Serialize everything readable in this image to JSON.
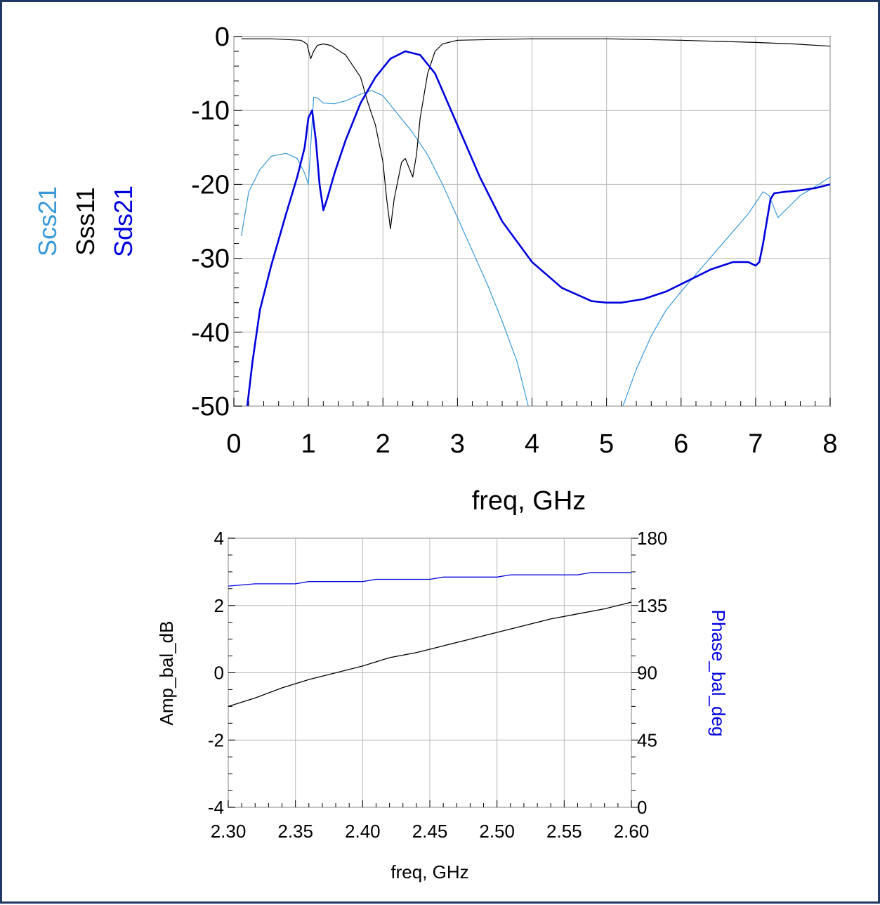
{
  "chart_data": [
    {
      "type": "line",
      "xlabel": "freq, GHz",
      "ylabel": "",
      "xlim": [
        0,
        8
      ],
      "ylim": [
        -50,
        0
      ],
      "xticks": [
        0,
        1,
        2,
        3,
        4,
        5,
        6,
        7,
        8
      ],
      "yticks": [
        0,
        -10,
        -20,
        -30,
        -40,
        -50
      ],
      "grid": true,
      "legend": "left, vertical text",
      "series": [
        {
          "name": "Scs21",
          "color": "#3a9ad9",
          "x": [
            0.1,
            0.2,
            0.35,
            0.5,
            0.7,
            0.85,
            0.95,
            1.0,
            1.03,
            1.07,
            1.12,
            1.2,
            1.35,
            1.5,
            1.7,
            1.85,
            2.0,
            2.2,
            2.4,
            2.6,
            2.8,
            3.0,
            3.2,
            3.4,
            3.6,
            3.8,
            3.95
          ],
          "values": [
            -27,
            -21,
            -18,
            -16.2,
            -15.8,
            -16.5,
            -18.5,
            -20,
            -15,
            -8.2,
            -8.3,
            -9,
            -9.1,
            -8.7,
            -7.8,
            -7.3,
            -8,
            -10.5,
            -13,
            -16,
            -20,
            -24.5,
            -29,
            -33.5,
            -38.5,
            -44,
            -50
          ]
        },
        {
          "name": "Scs21",
          "color": "#3a9ad9",
          "x": [
            5.22,
            5.4,
            5.6,
            5.8,
            6.0,
            6.3,
            6.6,
            6.9,
            7.1,
            7.18,
            7.3,
            7.45,
            7.6,
            7.8,
            8.0
          ],
          "values": [
            -50,
            -45,
            -40.5,
            -37,
            -34.5,
            -31,
            -27.5,
            -24,
            -21,
            -21.5,
            -24.5,
            -23,
            -21.5,
            -20.3,
            -19
          ]
        },
        {
          "name": "Sss11",
          "color": "#000000",
          "x": [
            0.1,
            0.5,
            0.9,
            0.98,
            1.03,
            1.07,
            1.12,
            1.2,
            1.3,
            1.5,
            1.7,
            1.8,
            1.9,
            2.0,
            2.05,
            2.1,
            2.15,
            2.25,
            2.3,
            2.4,
            2.45,
            2.5,
            2.6,
            2.7,
            2.8,
            3.0,
            3.5,
            4.0,
            5.0,
            6.0,
            7.0,
            7.5,
            8.0
          ],
          "values": [
            -0.3,
            -0.3,
            -0.5,
            -1,
            -3,
            -2,
            -1.2,
            -1,
            -1.2,
            -2.5,
            -5.5,
            -9,
            -12,
            -17,
            -22,
            -26,
            -22,
            -17,
            -16.5,
            -19,
            -16,
            -11,
            -5,
            -2,
            -1,
            -0.5,
            -0.4,
            -0.3,
            -0.3,
            -0.5,
            -0.8,
            -1,
            -1.3
          ]
        },
        {
          "name": "Sds21",
          "color": "#0000dd",
          "x": [
            0.18,
            0.25,
            0.35,
            0.5,
            0.7,
            0.85,
            0.95,
            1.0,
            1.05,
            1.1,
            1.15,
            1.2,
            1.25,
            1.35,
            1.5,
            1.7,
            1.9,
            2.1,
            2.3,
            2.5,
            2.7,
            3.0,
            3.3,
            3.6,
            4.0,
            4.4,
            4.8,
            5.0,
            5.2,
            5.5,
            5.8,
            6.1,
            6.4,
            6.7,
            6.9,
            7.0,
            7.05,
            7.1,
            7.15,
            7.2,
            7.25,
            7.4,
            7.6,
            7.8,
            8.0
          ],
          "values": [
            -50,
            -44,
            -37,
            -31,
            -24,
            -19,
            -15,
            -11,
            -10,
            -14,
            -20,
            -23.5,
            -22,
            -18.5,
            -14,
            -9,
            -5.5,
            -3,
            -2,
            -2.5,
            -5,
            -12,
            -19,
            -25,
            -30.5,
            -34,
            -35.8,
            -36,
            -36,
            -35.5,
            -34.5,
            -33,
            -31.5,
            -30.5,
            -30.5,
            -31,
            -30.5,
            -28,
            -25,
            -22,
            -21.2,
            -21,
            -20.8,
            -20.5,
            -20
          ]
        }
      ]
    },
    {
      "type": "line",
      "xlabel": "freq, GHz",
      "ylabel": "Amp_bal_dB",
      "y2label": "Phase_bal_deg",
      "xlim": [
        2.3,
        2.6
      ],
      "ylim": [
        -4,
        4
      ],
      "y2lim": [
        0,
        180
      ],
      "xticks": [
        "2.30",
        "2.35",
        "2.40",
        "2.45",
        "2.50",
        "2.55",
        "2.60"
      ],
      "yticks": [
        4,
        2,
        0,
        -2,
        -4
      ],
      "y2ticks": [
        180,
        135,
        90,
        45,
        0
      ],
      "grid": true,
      "series": [
        {
          "name": "Amp_bal_dB",
          "axis": "left",
          "color": "#000000",
          "x": [
            2.3,
            2.32,
            2.34,
            2.36,
            2.38,
            2.4,
            2.42,
            2.44,
            2.46,
            2.48,
            2.5,
            2.52,
            2.54,
            2.56,
            2.58,
            2.6
          ],
          "values": [
            -1.0,
            -0.75,
            -0.45,
            -0.2,
            0.0,
            0.2,
            0.45,
            0.6,
            0.8,
            1.0,
            1.2,
            1.4,
            1.6,
            1.75,
            1.9,
            2.1
          ]
        },
        {
          "name": "Phase_bal_deg",
          "axis": "right",
          "color": "#0000dd",
          "x": [
            2.3,
            2.32,
            2.35,
            2.36,
            2.4,
            2.41,
            2.45,
            2.46,
            2.5,
            2.51,
            2.56,
            2.57,
            2.6
          ],
          "values": [
            148,
            149.5,
            149.5,
            151,
            151,
            152.5,
            152.5,
            154,
            154,
            155.5,
            155.5,
            157,
            157
          ]
        }
      ]
    }
  ]
}
